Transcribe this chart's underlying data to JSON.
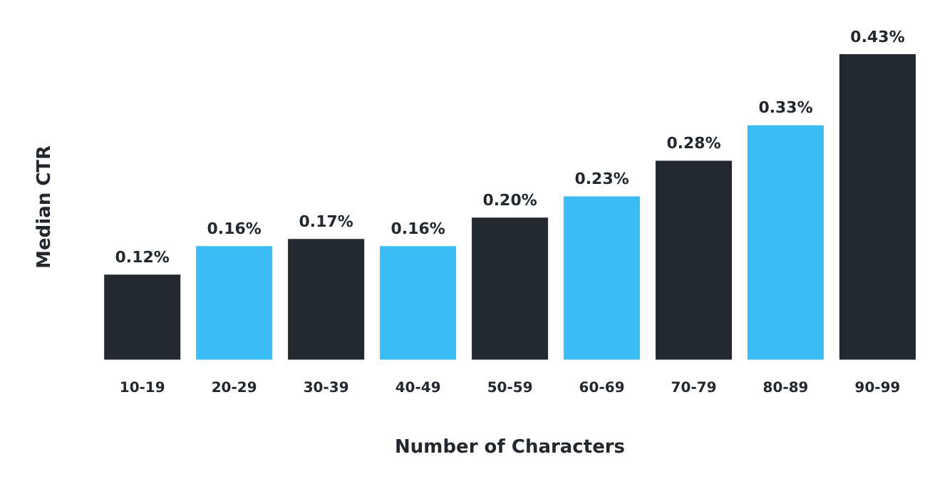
{
  "chart_data": {
    "type": "bar",
    "xlabel": "Number of Characters",
    "ylabel": "Median CTR",
    "categories": [
      "10-19",
      "20-29",
      "30-39",
      "40-49",
      "50-59",
      "60-69",
      "70-79",
      "80-89",
      "90-99"
    ],
    "values": [
      0.12,
      0.16,
      0.17,
      0.16,
      0.2,
      0.23,
      0.28,
      0.33,
      0.43
    ],
    "colors": [
      "#22282e",
      "#3bbcf5",
      "#22282e",
      "#3bbcf5",
      "#22282e",
      "#3bbcf5",
      "#22282e",
      "#3bbcf5",
      "#22282e"
    ],
    "value_labels": [
      "0.12%",
      "0.16%",
      "0.17%",
      "0.16%",
      "0.20%",
      "0.23%",
      "0.28%",
      "0.33%",
      "0.43%"
    ],
    "legend": false,
    "grid": false
  }
}
